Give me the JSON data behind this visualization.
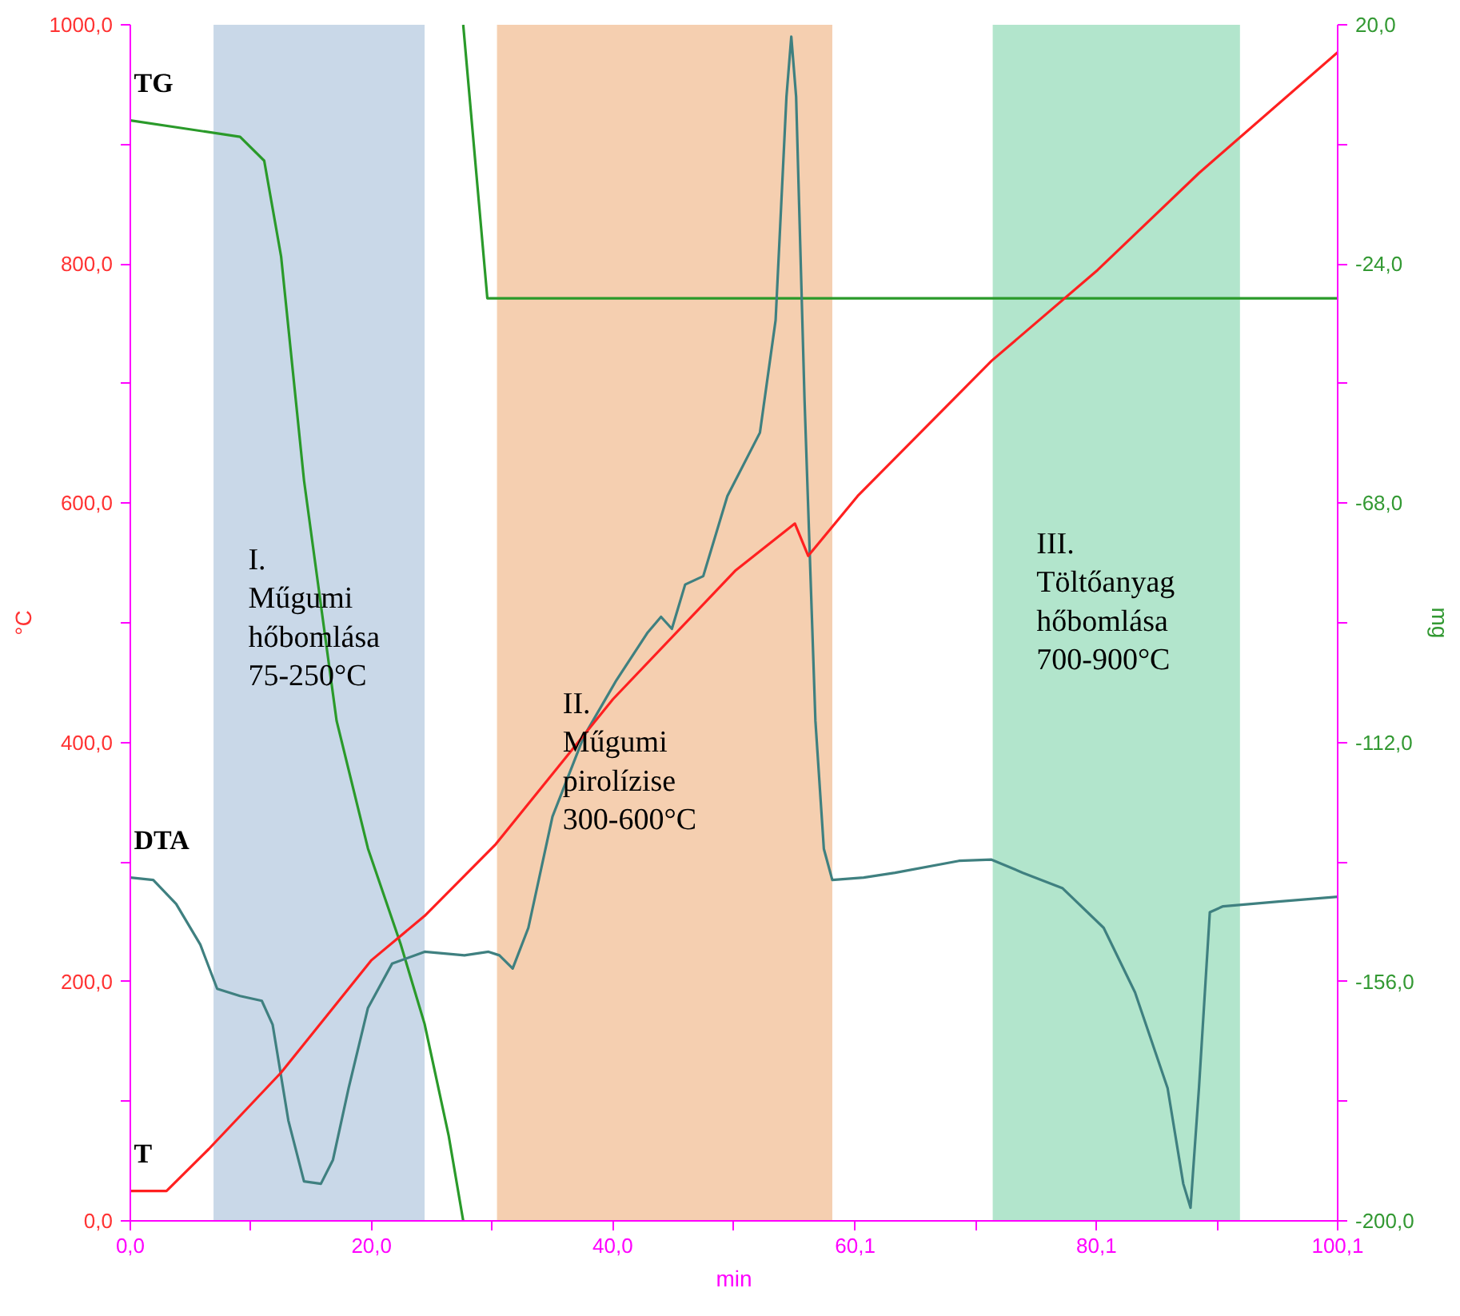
{
  "chart_data": {
    "type": "line",
    "xlabel": "min",
    "ylabel": "°C",
    "y2label": "mg",
    "xlim": [
      0,
      100.1
    ],
    "ylim": [
      0,
      1000
    ],
    "y2lim": [
      -200,
      20
    ],
    "xticks": [
      {
        "value": 0,
        "label": "0,0"
      },
      {
        "value": 10,
        "label": null
      },
      {
        "value": 20,
        "label": "20,0"
      },
      {
        "value": 30,
        "label": null
      },
      {
        "value": 40,
        "label": "40,0"
      },
      {
        "value": 50,
        "label": null
      },
      {
        "value": 60.1,
        "label": "60,1"
      },
      {
        "value": 70.1,
        "label": null
      },
      {
        "value": 80.1,
        "label": "80,1"
      },
      {
        "value": 90.1,
        "label": null
      },
      {
        "value": 100.1,
        "label": "100,1"
      }
    ],
    "yticks": [
      {
        "value": 0,
        "label": "0,0"
      },
      {
        "value": 100,
        "label": null
      },
      {
        "value": 200,
        "label": "200,0"
      },
      {
        "value": 300,
        "label": null
      },
      {
        "value": 400,
        "label": "400,0"
      },
      {
        "value": 500,
        "label": null
      },
      {
        "value": 600,
        "label": "600,0"
      },
      {
        "value": 700,
        "label": null
      },
      {
        "value": 800,
        "label": "800,0"
      },
      {
        "value": 900,
        "label": null
      },
      {
        "value": 1000,
        "label": "1000,0"
      }
    ],
    "y2ticks": [
      {
        "value": 20,
        "label": "20,0"
      },
      {
        "value": -2,
        "label": null
      },
      {
        "value": -24,
        "label": "-24,0"
      },
      {
        "value": -46,
        "label": null
      },
      {
        "value": -68,
        "label": "-68,0"
      },
      {
        "value": -90,
        "label": null
      },
      {
        "value": -112,
        "label": "-112,0"
      },
      {
        "value": -134,
        "label": null
      },
      {
        "value": -156,
        "label": "-156,0"
      },
      {
        "value": -178,
        "label": null
      },
      {
        "value": -200,
        "label": "-200,0"
      }
    ],
    "grid": false,
    "marker": "none",
    "line_style": "solid",
    "bands": [
      {
        "axis": "x",
        "from": 6.9,
        "to": 24.4,
        "label": "I.\nMűgumi\nhőbomlása\n75-250°C",
        "color": "#c9d8e8"
      },
      {
        "axis": "x",
        "from": 30.4,
        "to": 58.2,
        "label": "II.\nMűgumi\npirolízise\n300-600°C",
        "color": "#f5cfb0"
      },
      {
        "axis": "x",
        "from": 71.5,
        "to": 92.0,
        "label": "III.\nTöltőanyag\nhőbomlása\n700-900°C",
        "color": "#b2e5cc"
      }
    ],
    "series": [
      {
        "name": "TG",
        "color": "#2a9a2a",
        "axis": "y2",
        "x": [
          0,
          9.1,
          11.1,
          12.5,
          14.4,
          17.1,
          19.7,
          22.4,
          24.4,
          26.4,
          27.6,
          null,
          27.6,
          29.6,
          100.1
        ],
        "values": [
          2.4,
          -0.6,
          -5,
          -22.6,
          -63.8,
          -108,
          -131.5,
          -149,
          -163.8,
          -184.4,
          -200,
          null,
          20,
          -30.3,
          -30.3
        ]
      },
      {
        "name": "DTA",
        "color": "#3f8080",
        "axis": "y",
        "x": [
          0,
          1.9,
          3.8,
          5.8,
          7.2,
          9.1,
          10.9,
          11.8,
          13.1,
          14.4,
          15.8,
          16.8,
          18.1,
          19.7,
          21.7,
          24.4,
          27.7,
          29.7,
          30.6,
          31.7,
          33,
          35,
          37.6,
          40.3,
          42.9,
          44,
          44.9,
          46,
          47.5,
          49.5,
          52.2,
          53.5,
          54.4,
          54.8,
          55.2,
          55.9,
          56.8,
          57.5,
          58.2,
          60.8,
          63.4,
          68.7,
          71.4,
          74,
          77.3,
          80.7,
          83.3,
          86,
          87.3,
          87.9,
          88.6,
          89.5,
          90.6,
          95.2,
          100.1
        ],
        "values": [
          287,
          285,
          265,
          231,
          194,
          188,
          184,
          164,
          84,
          33,
          31,
          51,
          111,
          178,
          215,
          225,
          222,
          225,
          222,
          211,
          245,
          338,
          405,
          452,
          492,
          505,
          495,
          532,
          539,
          606,
          659,
          753,
          940,
          990,
          940,
          686,
          418,
          311,
          285,
          287,
          291,
          301,
          302,
          291,
          278,
          245,
          191,
          111,
          31,
          11,
          111,
          258,
          263,
          267,
          271
        ]
      },
      {
        "name": "T",
        "color": "#ff2020",
        "axis": "y",
        "x": [
          0,
          3,
          6.5,
          12.5,
          20,
          24.4,
          30.3,
          40,
          50.2,
          55.1,
          56.2,
          60.3,
          71.4,
          80.2,
          88.6,
          100.1
        ],
        "values": [
          25,
          25,
          60,
          124,
          218,
          255,
          315,
          436,
          544,
          583,
          556,
          606,
          719,
          795,
          876,
          977
        ]
      }
    ]
  }
}
